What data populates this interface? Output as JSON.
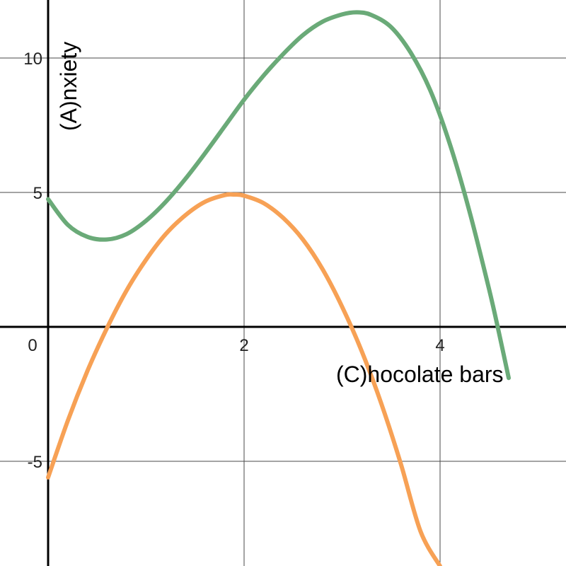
{
  "chart_data": {
    "type": "line",
    "xlabel": "(C)hocolate bars",
    "ylabel": "(A)nxiety",
    "xlim": [
      -0.5,
      5.3
    ],
    "ylim": [
      -9,
      12.3
    ],
    "x_ticks": [
      {
        "value": 0,
        "label": "0"
      },
      {
        "value": 2,
        "label": "2"
      },
      {
        "value": 4,
        "label": "4"
      }
    ],
    "y_ticks": [
      {
        "value": -5,
        "label": "-5"
      },
      {
        "value": 5,
        "label": "5"
      },
      {
        "value": 10,
        "label": "10"
      }
    ],
    "grid": true,
    "series": [
      {
        "color": "#6aaa78",
        "x": [
          0,
          0.2,
          0.4,
          0.6,
          0.8,
          1.0,
          1.2,
          1.4,
          1.6,
          1.8,
          2.0,
          2.2,
          2.4,
          2.6,
          2.8,
          3.0,
          3.15,
          3.3,
          3.5,
          3.7,
          3.9,
          4.1,
          4.3,
          4.5,
          4.6,
          4.7
        ],
        "y": [
          4.75,
          3.8,
          3.35,
          3.25,
          3.45,
          3.95,
          4.65,
          5.5,
          6.45,
          7.45,
          8.45,
          9.35,
          10.15,
          10.85,
          11.35,
          11.62,
          11.7,
          11.6,
          11.15,
          10.2,
          8.8,
          6.8,
          4.3,
          1.4,
          -0.2,
          -1.9
        ]
      },
      {
        "color": "#f7a155",
        "x": [
          0,
          0.2,
          0.4,
          0.6,
          0.8,
          1.0,
          1.2,
          1.4,
          1.6,
          1.8,
          1.9,
          2.0,
          2.2,
          2.4,
          2.6,
          2.8,
          3.0,
          3.2,
          3.4,
          3.6,
          3.8,
          4.0
        ],
        "y": [
          -5.6,
          -3.5,
          -1.65,
          -0.05,
          1.35,
          2.5,
          3.45,
          4.15,
          4.65,
          4.9,
          4.92,
          4.88,
          4.6,
          4.05,
          3.25,
          2.15,
          0.75,
          -0.9,
          -2.85,
          -5.1,
          -7.6,
          -8.9
        ]
      }
    ]
  }
}
